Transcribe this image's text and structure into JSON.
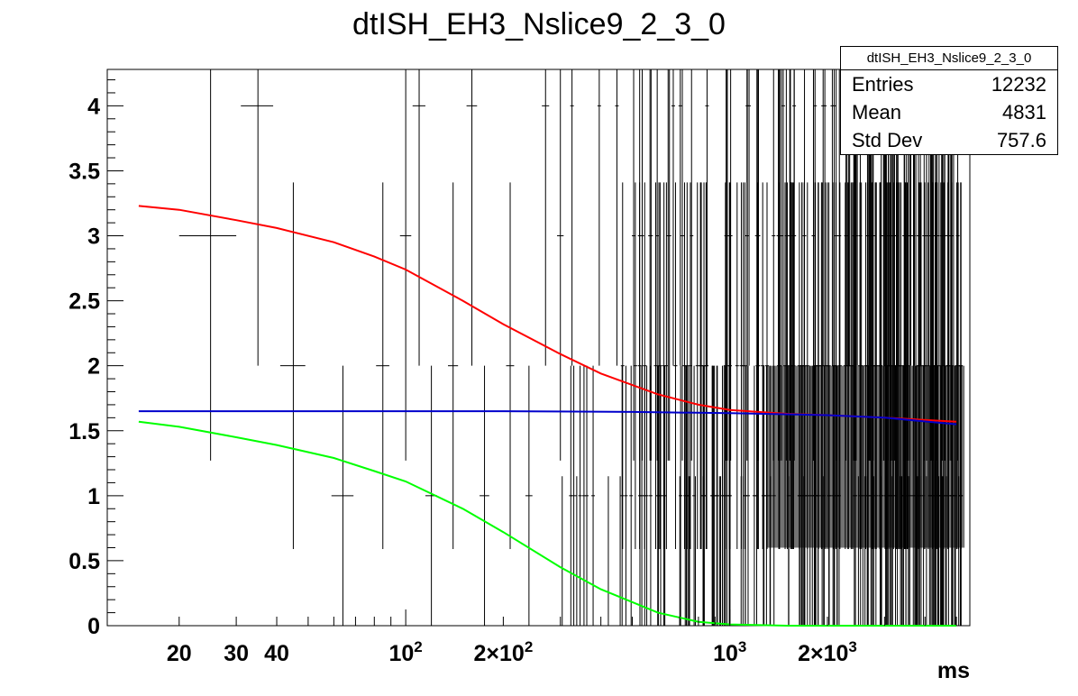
{
  "chart_data": {
    "type": "scatter",
    "title": "dtISH_EH3_Nslice9_2_3_0",
    "xlabel": "ms",
    "ylabel": "",
    "x_scale": "log",
    "xlim": [
      12,
      5500
    ],
    "ylim": [
      0,
      4.28
    ],
    "x_ticks": [
      {
        "value": 20,
        "label": "20"
      },
      {
        "value": 30,
        "label": "30"
      },
      {
        "value": 40,
        "label": "40"
      },
      {
        "value": 100,
        "label": "10",
        "sup": "2"
      },
      {
        "value": 200,
        "label": "2×10",
        "sup": "2"
      },
      {
        "value": 1000,
        "label": "10",
        "sup": "3"
      },
      {
        "value": 2000,
        "label": "2×10",
        "sup": "3"
      }
    ],
    "y_ticks": [
      "0",
      "0.5",
      "1",
      "1.5",
      "2",
      "2.5",
      "3",
      "3.5",
      "4"
    ],
    "points": [
      {
        "x": 25,
        "y": 3,
        "xerr": 5,
        "yerr": 1.73
      },
      {
        "x": 35,
        "y": 4,
        "xerr": 4,
        "yerr": 2.0
      },
      {
        "x": 45,
        "y": 2,
        "xerr": 4,
        "yerr": 1.41
      },
      {
        "x": 64,
        "y": 1,
        "xerr": 5,
        "yerr": 1.0
      },
      {
        "x": 85,
        "y": 2,
        "xerr": 4,
        "yerr": 1.41
      },
      {
        "x": 100,
        "y": 3,
        "xerr": 4,
        "yerr": 1.73
      },
      {
        "x": 110,
        "y": 4,
        "xerr": 5,
        "yerr": 2.0
      },
      {
        "x": 120,
        "y": 1,
        "xerr": 5,
        "yerr": 1.0
      },
      {
        "x": 140,
        "y": 2,
        "xerr": 5,
        "yerr": 1.41
      },
      {
        "x": 160,
        "y": 4,
        "xerr": 6,
        "yerr": 2.0
      },
      {
        "x": 175,
        "y": 1,
        "xerr": 6,
        "yerr": 1.0
      },
      {
        "x": 210,
        "y": 2,
        "xerr": 6,
        "yerr": 1.41
      },
      {
        "x": 240,
        "y": 1,
        "xerr": 6,
        "yerr": 1.0
      },
      {
        "x": 270,
        "y": 4,
        "xerr": 7,
        "yerr": 2.0
      },
      {
        "x": 300,
        "y": 3,
        "xerr": 7,
        "yerr": 1.73
      },
      {
        "x": 330,
        "y": 1,
        "xerr": 7,
        "yerr": 1.0
      }
    ],
    "series": [
      {
        "name": "",
        "color": "#ff0000",
        "x": [
          15,
          20,
          30,
          40,
          60,
          80,
          100,
          150,
          200,
          300,
          400,
          600,
          800,
          1000,
          1500,
          2000,
          3000,
          5000
        ],
        "y": [
          3.23,
          3.2,
          3.12,
          3.06,
          2.95,
          2.84,
          2.74,
          2.5,
          2.32,
          2.09,
          1.94,
          1.78,
          1.7,
          1.66,
          1.63,
          1.62,
          1.6,
          1.57
        ]
      },
      {
        "name": "",
        "color": "#0000cc",
        "x": [
          15,
          100,
          200,
          500,
          1000,
          2000,
          3000,
          5000
        ],
        "y": [
          1.65,
          1.65,
          1.65,
          1.645,
          1.635,
          1.62,
          1.6,
          1.55
        ]
      },
      {
        "name": "",
        "color": "#00ff00",
        "x": [
          15,
          20,
          30,
          40,
          60,
          80,
          100,
          150,
          200,
          300,
          400,
          600,
          800,
          1000,
          1500,
          2000,
          3000,
          5000
        ],
        "y": [
          1.57,
          1.53,
          1.45,
          1.39,
          1.29,
          1.19,
          1.11,
          0.9,
          0.72,
          0.45,
          0.28,
          0.1,
          0.03,
          0.01,
          0.0,
          0.0,
          0.0,
          0.0
        ]
      }
    ],
    "grid": false,
    "legend": "none"
  },
  "statbox": {
    "title": "dtISH_EH3_Nslice9_2_3_0",
    "rows": [
      {
        "label": "Entries",
        "value": "12232"
      },
      {
        "label": "Mean",
        "value": "4831"
      },
      {
        "label": "Std Dev",
        "value": "757.6"
      }
    ]
  }
}
